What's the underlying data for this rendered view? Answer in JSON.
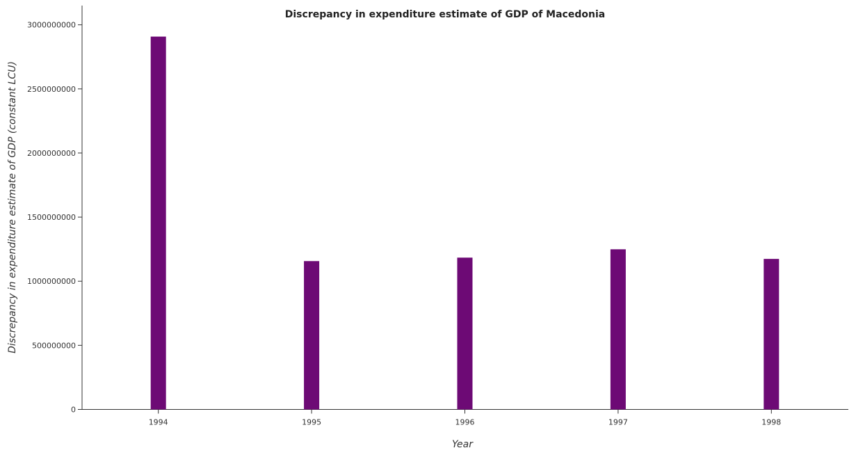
{
  "chart_data": {
    "type": "bar",
    "title": "Discrepancy in expenditure estimate of GDP of Macedonia",
    "xlabel": "Year",
    "ylabel": "Discrepancy in expenditure estimate of GDP (constant LCU)",
    "categories": [
      "1994",
      "1995",
      "1996",
      "1997",
      "1998"
    ],
    "values": [
      2908000000,
      1157000000,
      1184000000,
      1249000000,
      1174000000
    ],
    "ylim": [
      0,
      3150000000
    ],
    "yticks": [
      0,
      500000000,
      1000000000,
      1500000000,
      2000000000,
      2500000000,
      3000000000
    ],
    "ytick_labels": [
      "0",
      "500000000",
      "1000000000",
      "1500000000",
      "2000000000",
      "2500000000",
      "3000000000"
    ],
    "grid": false,
    "legend": "none",
    "bar_color": "#6d0a75"
  }
}
